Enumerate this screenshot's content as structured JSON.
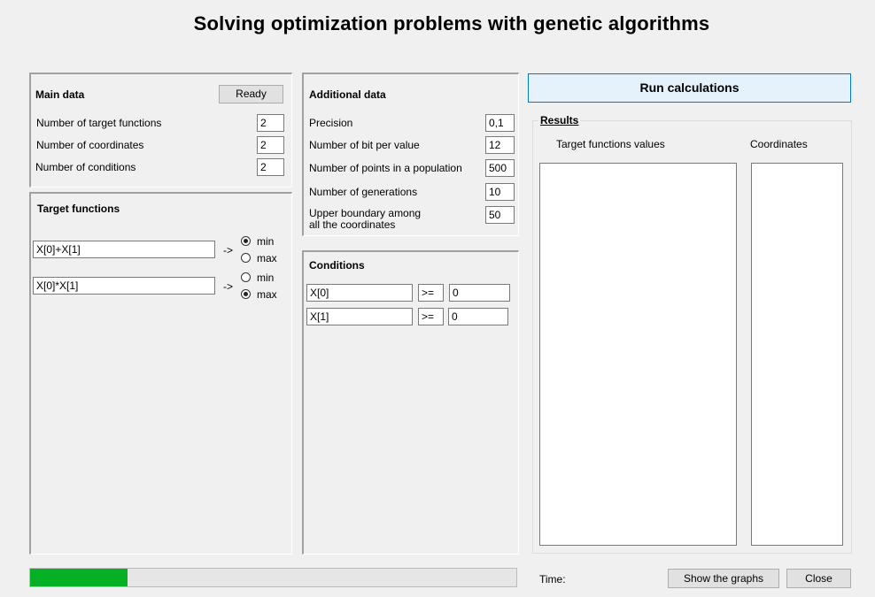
{
  "window": {
    "title": "Solving optimization problems with genetic algorithms"
  },
  "main_data": {
    "header": "Main data",
    "ready_button": "Ready",
    "fields": [
      {
        "label": "Number of target functions",
        "value": "2"
      },
      {
        "label": "Number of coordinates",
        "value": "2"
      },
      {
        "label": "Number of conditions",
        "value": "2"
      }
    ]
  },
  "target_functions": {
    "header": "Target functions",
    "arrow": "->",
    "items": [
      {
        "expression": "X[0]+X[1]",
        "min_label": "min",
        "max_label": "max",
        "selected": "min"
      },
      {
        "expression": "X[0]*X[1]",
        "min_label": "min",
        "max_label": "max",
        "selected": "max"
      }
    ]
  },
  "additional_data": {
    "header": "Additional data",
    "fields": [
      {
        "label": "Precision",
        "value": "0,1"
      },
      {
        "label": "Number of bit per value",
        "value": "12"
      },
      {
        "label": "Number of points in a population",
        "value": "500"
      },
      {
        "label": "Number of generations",
        "value": "10"
      },
      {
        "label_line1": "Upper boundary among",
        "label_line2": "all the coordinates",
        "value": "50"
      }
    ]
  },
  "conditions": {
    "header": "Conditions",
    "rows": [
      {
        "left": "X[0]",
        "op": ">=",
        "right": "0"
      },
      {
        "left": "X[1]",
        "op": ">=",
        "right": "0"
      }
    ]
  },
  "actions": {
    "run_button": "Run calculations",
    "show_graphs_button": "Show the graphs",
    "close_button": "Close"
  },
  "results": {
    "header": "Results",
    "target_values_label": "Target functions values",
    "coordinates_label": "Coordinates"
  },
  "status": {
    "time_label": "Time:",
    "progress": 0.2,
    "progress_color": "#06b025"
  }
}
